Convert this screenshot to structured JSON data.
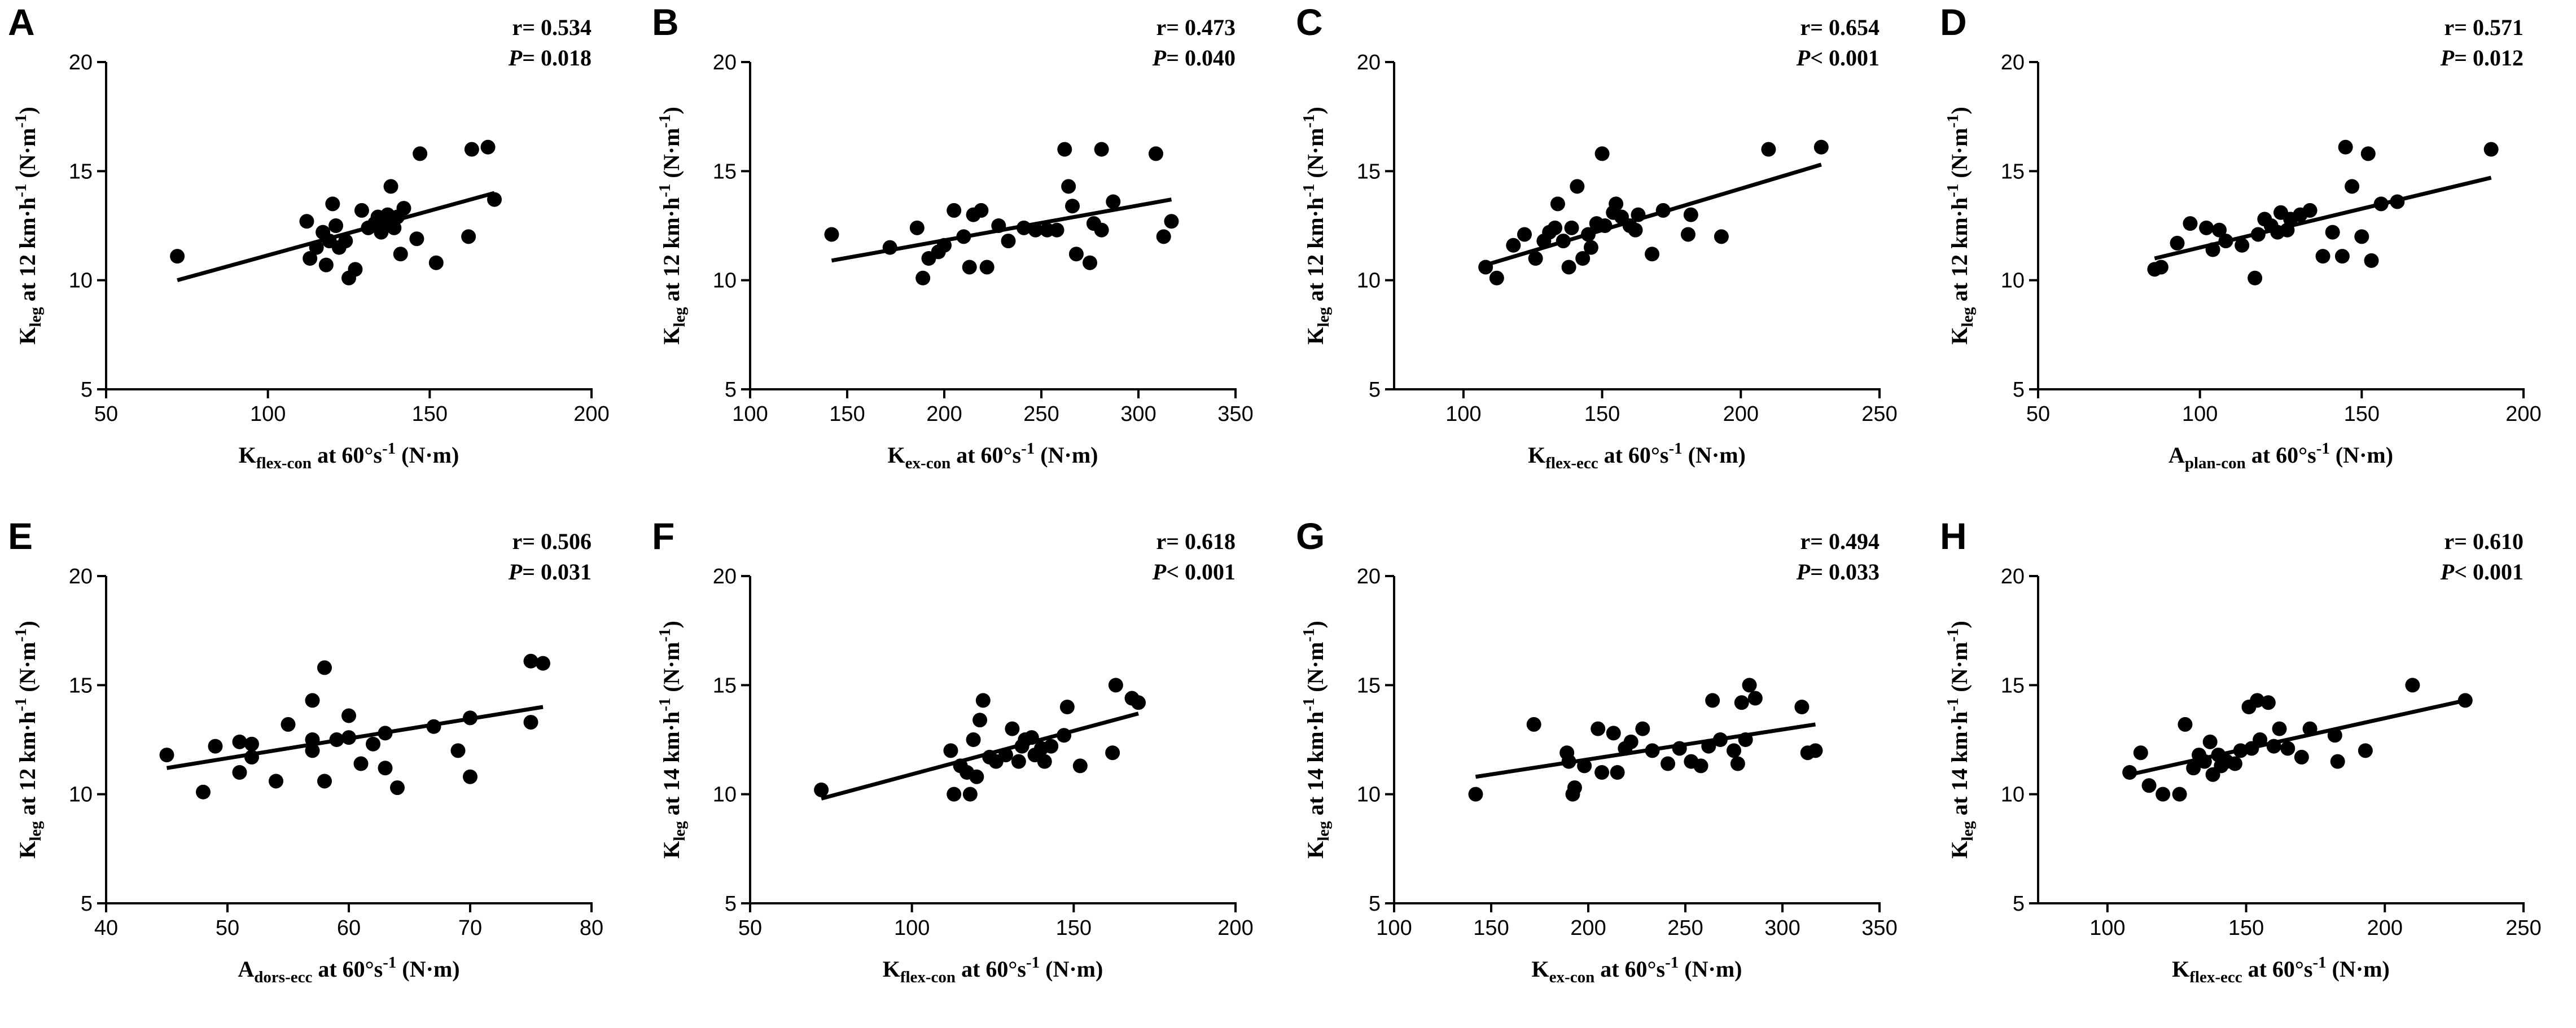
{
  "chart_data": [
    {
      "letter": "A",
      "type": "scatter",
      "r_text": "r= 0.534",
      "p_italic": "P",
      "p_rest": "= 0.018",
      "xlabel": {
        "main": "K",
        "sub": "flex-con",
        "tail": " at 60°s",
        "sup": "-1",
        "unit": " (N·m)"
      },
      "ylabel": {
        "main": "K",
        "sub": "leg",
        "tail": " at 12 km·h",
        "sup": "-1",
        "unit": " (N·m",
        "sup2": "-1",
        "close": ")"
      },
      "xlim": [
        50,
        200
      ],
      "xticks": [
        50,
        100,
        150,
        200
      ],
      "ylim": [
        5,
        20
      ],
      "yticks": [
        5,
        10,
        15,
        20
      ],
      "fit": [
        [
          72,
          10.0
        ],
        [
          170,
          14.0
        ]
      ],
      "points": [
        [
          72,
          11.1
        ],
        [
          112,
          12.7
        ],
        [
          113,
          11.0
        ],
        [
          115,
          11.5
        ],
        [
          117,
          12.2
        ],
        [
          118,
          10.7
        ],
        [
          119,
          11.8
        ],
        [
          120,
          13.5
        ],
        [
          121,
          12.5
        ],
        [
          122,
          11.5
        ],
        [
          124,
          11.8
        ],
        [
          125,
          10.1
        ],
        [
          127,
          10.5
        ],
        [
          129,
          13.2
        ],
        [
          131,
          12.4
        ],
        [
          133,
          12.6
        ],
        [
          134,
          12.9
        ],
        [
          135,
          12.2
        ],
        [
          136,
          12.5
        ],
        [
          137,
          13.0
        ],
        [
          138,
          14.3
        ],
        [
          139,
          12.4
        ],
        [
          140,
          12.9
        ],
        [
          141,
          11.2
        ],
        [
          142,
          13.3
        ],
        [
          146,
          11.9
        ],
        [
          147,
          15.8
        ],
        [
          152,
          10.8
        ],
        [
          162,
          12.0
        ],
        [
          163,
          16.0
        ],
        [
          168,
          16.1
        ],
        [
          170,
          13.7
        ]
      ]
    },
    {
      "letter": "B",
      "type": "scatter",
      "r_text": "r= 0.473",
      "p_italic": "P",
      "p_rest": "= 0.040",
      "xlabel": {
        "main": "K",
        "sub": "ex-con",
        "tail": " at 60°s",
        "sup": "-1",
        "unit": " (N·m)"
      },
      "ylabel": {
        "main": "K",
        "sub": "leg",
        "tail": " at 12 km·h",
        "sup": "-1",
        "unit": " (N·m",
        "sup2": "-1",
        "close": ")"
      },
      "xlim": [
        100,
        350
      ],
      "xticks": [
        100,
        150,
        200,
        250,
        300,
        350
      ],
      "ylim": [
        5,
        20
      ],
      "yticks": [
        5,
        10,
        15,
        20
      ],
      "fit": [
        [
          142,
          10.9
        ],
        [
          317,
          13.7
        ]
      ],
      "points": [
        [
          142,
          12.1
        ],
        [
          172,
          11.5
        ],
        [
          186,
          12.4
        ],
        [
          189,
          10.1
        ],
        [
          192,
          11.0
        ],
        [
          197,
          11.3
        ],
        [
          200,
          11.6
        ],
        [
          205,
          13.2
        ],
        [
          210,
          12.0
        ],
        [
          213,
          10.6
        ],
        [
          215,
          13.0
        ],
        [
          219,
          13.2
        ],
        [
          222,
          10.6
        ],
        [
          228,
          12.5
        ],
        [
          233,
          11.8
        ],
        [
          241,
          12.4
        ],
        [
          247,
          12.3
        ],
        [
          253,
          12.3
        ],
        [
          258,
          12.3
        ],
        [
          262,
          16.0
        ],
        [
          264,
          14.3
        ],
        [
          266,
          13.4
        ],
        [
          268,
          11.2
        ],
        [
          275,
          10.8
        ],
        [
          277,
          12.6
        ],
        [
          281,
          16.0
        ],
        [
          281,
          12.3
        ],
        [
          287,
          13.6
        ],
        [
          309,
          15.8
        ],
        [
          313,
          12.0
        ],
        [
          317,
          12.7
        ]
      ]
    },
    {
      "letter": "C",
      "type": "scatter",
      "r_text": "r= 0.654",
      "p_italic": "P",
      "p_rest": "< 0.001",
      "xlabel": {
        "main": "K",
        "sub": "flex-ecc",
        "tail": " at 60°s",
        "sup": "-1",
        "unit": " (N·m)"
      },
      "ylabel": {
        "main": "K",
        "sub": "leg",
        "tail": " at 12 km·h",
        "sup": "-1",
        "unit": " (N·m",
        "sup2": "-1",
        "close": ")"
      },
      "xlim": [
        75,
        250
      ],
      "xticks": [
        100,
        150,
        200,
        250
      ],
      "ylim": [
        5,
        20
      ],
      "yticks": [
        5,
        10,
        15,
        20
      ],
      "fit": [
        [
          108,
          10.7
        ],
        [
          229,
          15.3
        ]
      ],
      "points": [
        [
          108,
          10.6
        ],
        [
          112,
          10.1
        ],
        [
          118,
          11.6
        ],
        [
          122,
          12.1
        ],
        [
          126,
          11.0
        ],
        [
          129,
          11.8
        ],
        [
          131,
          12.2
        ],
        [
          133,
          12.4
        ],
        [
          134,
          13.5
        ],
        [
          136,
          11.8
        ],
        [
          138,
          10.6
        ],
        [
          139,
          12.4
        ],
        [
          141,
          14.3
        ],
        [
          143,
          11.0
        ],
        [
          145,
          12.1
        ],
        [
          146,
          11.5
        ],
        [
          148,
          12.6
        ],
        [
          150,
          15.8
        ],
        [
          151,
          12.5
        ],
        [
          154,
          13.1
        ],
        [
          155,
          13.5
        ],
        [
          157,
          12.9
        ],
        [
          160,
          12.5
        ],
        [
          162,
          12.3
        ],
        [
          163,
          13.0
        ],
        [
          168,
          11.2
        ],
        [
          172,
          13.2
        ],
        [
          181,
          12.1
        ],
        [
          182,
          13.0
        ],
        [
          193,
          12.0
        ],
        [
          210,
          16.0
        ],
        [
          229,
          16.1
        ]
      ]
    },
    {
      "letter": "D",
      "type": "scatter",
      "r_text": "r= 0.571",
      "p_italic": "P",
      "p_rest": "= 0.012",
      "xlabel": {
        "main": "A",
        "sub": "plan-con",
        "tail": " at 60°s",
        "sup": "-1",
        "unit": " (N·m)"
      },
      "ylabel": {
        "main": "K",
        "sub": "leg",
        "tail": " at 12 km·h",
        "sup": "-1",
        "unit": " (N·m",
        "sup2": "-1",
        "close": ")"
      },
      "xlim": [
        50,
        200
      ],
      "xticks": [
        50,
        100,
        150,
        200
      ],
      "ylim": [
        5,
        20
      ],
      "yticks": [
        5,
        10,
        15,
        20
      ],
      "fit": [
        [
          86,
          11.0
        ],
        [
          190,
          14.7
        ]
      ],
      "points": [
        [
          86,
          10.5
        ],
        [
          88,
          10.6
        ],
        [
          93,
          11.7
        ],
        [
          97,
          12.6
        ],
        [
          102,
          12.4
        ],
        [
          104,
          11.4
        ],
        [
          106,
          12.3
        ],
        [
          108,
          11.8
        ],
        [
          113,
          11.6
        ],
        [
          117,
          10.1
        ],
        [
          118,
          12.1
        ],
        [
          120,
          12.8
        ],
        [
          122,
          12.5
        ],
        [
          124,
          12.2
        ],
        [
          125,
          13.1
        ],
        [
          127,
          12.3
        ],
        [
          128,
          12.8
        ],
        [
          131,
          13.0
        ],
        [
          134,
          13.2
        ],
        [
          138,
          11.1
        ],
        [
          141,
          12.2
        ],
        [
          144,
          11.1
        ],
        [
          145,
          16.1
        ],
        [
          147,
          14.3
        ],
        [
          150,
          12.0
        ],
        [
          152,
          15.8
        ],
        [
          153,
          10.9
        ],
        [
          156,
          13.5
        ],
        [
          161,
          13.6
        ],
        [
          190,
          16.0
        ]
      ]
    },
    {
      "letter": "E",
      "type": "scatter",
      "r_text": "r= 0.506",
      "p_italic": "P",
      "p_rest": "= 0.031",
      "xlabel": {
        "main": "A",
        "sub": "dors-ecc",
        "tail": " at 60°s",
        "sup": "-1",
        "unit": " (N·m)"
      },
      "ylabel": {
        "main": "K",
        "sub": "leg",
        "tail": " at 12 km·h",
        "sup": "-1",
        "unit": " (N·m",
        "sup2": "-1",
        "close": ")"
      },
      "xlim": [
        40,
        80
      ],
      "xticks": [
        40,
        50,
        60,
        70,
        80
      ],
      "ylim": [
        5,
        20
      ],
      "yticks": [
        5,
        10,
        15,
        20
      ],
      "fit": [
        [
          45,
          11.2
        ],
        [
          76,
          14.0
        ]
      ],
      "points": [
        [
          45,
          11.8
        ],
        [
          48,
          10.1
        ],
        [
          49,
          12.2
        ],
        [
          51,
          11.0
        ],
        [
          51,
          12.4
        ],
        [
          52,
          11.7
        ],
        [
          52,
          12.3
        ],
        [
          54,
          10.6
        ],
        [
          55,
          13.2
        ],
        [
          57,
          14.3
        ],
        [
          57,
          12.0
        ],
        [
          57,
          12.5
        ],
        [
          58,
          15.8
        ],
        [
          58,
          10.6
        ],
        [
          59,
          12.5
        ],
        [
          60,
          12.6
        ],
        [
          60,
          13.6
        ],
        [
          61,
          11.4
        ],
        [
          62,
          12.3
        ],
        [
          63,
          11.2
        ],
        [
          63,
          12.8
        ],
        [
          64,
          10.3
        ],
        [
          67,
          13.1
        ],
        [
          69,
          12.0
        ],
        [
          70,
          10.8
        ],
        [
          70,
          13.5
        ],
        [
          75,
          16.1
        ],
        [
          75,
          13.3
        ],
        [
          76,
          16.0
        ]
      ]
    },
    {
      "letter": "F",
      "type": "scatter",
      "r_text": "r= 0.618",
      "p_italic": "P",
      "p_rest": "< 0.001",
      "xlabel": {
        "main": "K",
        "sub": "flex-con",
        "tail": " at 60°s",
        "sup": "-1",
        "unit": " (N·m)"
      },
      "ylabel": {
        "main": "K",
        "sub": "leg",
        "tail": " at 14 km·h",
        "sup": "-1",
        "unit": " (N·m",
        "sup2": "-1",
        "close": ")"
      },
      "xlim": [
        50,
        200
      ],
      "xticks": [
        50,
        100,
        150,
        200
      ],
      "ylim": [
        5,
        20
      ],
      "yticks": [
        5,
        10,
        15,
        20
      ],
      "fit": [
        [
          72,
          9.8
        ],
        [
          170,
          13.7
        ]
      ],
      "points": [
        [
          72,
          10.2
        ],
        [
          112,
          12.0
        ],
        [
          113,
          10.0
        ],
        [
          115,
          11.3
        ],
        [
          117,
          11.0
        ],
        [
          118,
          10.0
        ],
        [
          119,
          12.5
        ],
        [
          120,
          10.8
        ],
        [
          121,
          13.4
        ],
        [
          122,
          14.3
        ],
        [
          124,
          11.7
        ],
        [
          126,
          11.5
        ],
        [
          129,
          11.8
        ],
        [
          131,
          13.0
        ],
        [
          133,
          11.5
        ],
        [
          134,
          12.2
        ],
        [
          135,
          12.5
        ],
        [
          137,
          12.6
        ],
        [
          138,
          11.8
        ],
        [
          140,
          12.1
        ],
        [
          141,
          11.5
        ],
        [
          143,
          12.2
        ],
        [
          147,
          12.7
        ],
        [
          148,
          14.0
        ],
        [
          152,
          11.3
        ],
        [
          162,
          11.9
        ],
        [
          163,
          15.0
        ],
        [
          168,
          14.4
        ],
        [
          170,
          14.2
        ]
      ]
    },
    {
      "letter": "G",
      "type": "scatter",
      "r_text": "r= 0.494",
      "p_italic": "P",
      "p_rest": "= 0.033",
      "xlabel": {
        "main": "K",
        "sub": "ex-con",
        "tail": " at 60°s",
        "sup": "-1",
        "unit": " (N·m)"
      },
      "ylabel": {
        "main": "K",
        "sub": "leg",
        "tail": " at 14 km·h",
        "sup": "-1",
        "unit": " (N·m",
        "sup2": "-1",
        "close": ")"
      },
      "xlim": [
        100,
        350
      ],
      "xticks": [
        100,
        150,
        200,
        250,
        300,
        350
      ],
      "ylim": [
        5,
        20
      ],
      "yticks": [
        5,
        10,
        15,
        20
      ],
      "fit": [
        [
          142,
          10.8
        ],
        [
          317,
          13.2
        ]
      ],
      "points": [
        [
          142,
          10.0
        ],
        [
          172,
          13.2
        ],
        [
          189,
          11.9
        ],
        [
          190,
          11.5
        ],
        [
          192,
          10.0
        ],
        [
          193,
          10.3
        ],
        [
          198,
          11.3
        ],
        [
          205,
          13.0
        ],
        [
          207,
          11.0
        ],
        [
          213,
          12.8
        ],
        [
          215,
          11.0
        ],
        [
          219,
          12.1
        ],
        [
          222,
          12.4
        ],
        [
          228,
          13.0
        ],
        [
          233,
          12.0
        ],
        [
          241,
          11.4
        ],
        [
          247,
          12.1
        ],
        [
          253,
          11.5
        ],
        [
          258,
          11.3
        ],
        [
          262,
          12.2
        ],
        [
          264,
          14.3
        ],
        [
          268,
          12.5
        ],
        [
          275,
          12.0
        ],
        [
          277,
          11.4
        ],
        [
          279,
          14.2
        ],
        [
          281,
          12.5
        ],
        [
          283,
          15.0
        ],
        [
          286,
          14.4
        ],
        [
          310,
          14.0
        ],
        [
          313,
          11.9
        ],
        [
          317,
          12.0
        ]
      ]
    },
    {
      "letter": "H",
      "type": "scatter",
      "r_text": "r= 0.610",
      "p_italic": "P",
      "p_rest": "< 0.001",
      "xlabel": {
        "main": "K",
        "sub": "flex-ecc",
        "tail": " at 60°s",
        "sup": "-1",
        "unit": " (N·m)"
      },
      "ylabel": {
        "main": "K",
        "sub": "leg",
        "tail": " at 14 km·h",
        "sup": "-1",
        "unit": " (N·m",
        "sup2": "-1",
        "close": ")"
      },
      "xlim": [
        75,
        250
      ],
      "xticks": [
        100,
        150,
        200,
        250
      ],
      "ylim": [
        5,
        20
      ],
      "yticks": [
        5,
        10,
        15,
        20
      ],
      "fit": [
        [
          108,
          10.9
        ],
        [
          229,
          14.3
        ]
      ],
      "points": [
        [
          108,
          11.0
        ],
        [
          112,
          11.9
        ],
        [
          115,
          10.4
        ],
        [
          120,
          10.0
        ],
        [
          126,
          10.0
        ],
        [
          128,
          13.2
        ],
        [
          131,
          11.2
        ],
        [
          133,
          11.8
        ],
        [
          135,
          11.5
        ],
        [
          137,
          12.4
        ],
        [
          138,
          10.9
        ],
        [
          140,
          11.8
        ],
        [
          141,
          11.3
        ],
        [
          143,
          11.5
        ],
        [
          146,
          11.4
        ],
        [
          148,
          12.0
        ],
        [
          151,
          14.0
        ],
        [
          152,
          12.1
        ],
        [
          154,
          14.3
        ],
        [
          155,
          12.5
        ],
        [
          158,
          14.2
        ],
        [
          160,
          12.2
        ],
        [
          162,
          13.0
        ],
        [
          165,
          12.1
        ],
        [
          170,
          11.7
        ],
        [
          173,
          13.0
        ],
        [
          182,
          12.7
        ],
        [
          183,
          11.5
        ],
        [
          193,
          12.0
        ],
        [
          210,
          15.0
        ],
        [
          229,
          14.3
        ]
      ]
    }
  ]
}
